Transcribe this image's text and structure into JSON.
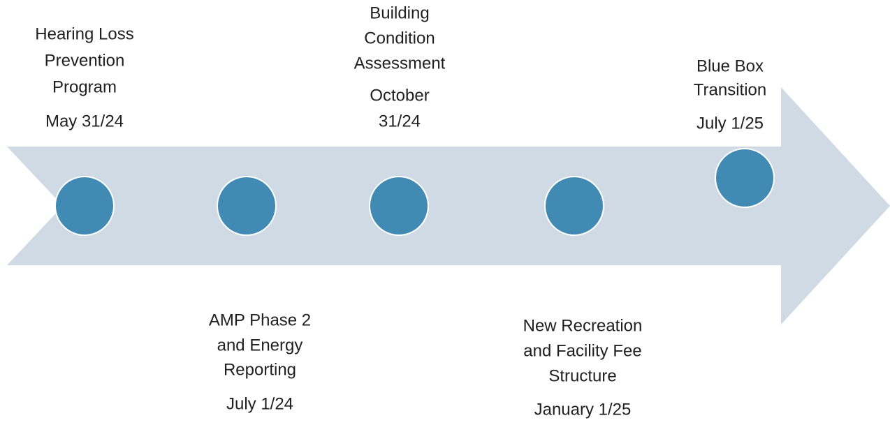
{
  "milestones": [
    {
      "title_lines": [
        "Hearing Loss",
        "Prevention",
        "Program"
      ],
      "date_lines": [
        "May 31/24"
      ]
    },
    {
      "title_lines": [
        "AMP Phase 2",
        "and Energy",
        "Reporting"
      ],
      "date_lines": [
        "July 1/24"
      ]
    },
    {
      "title_lines": [
        "Building",
        "Condition",
        "Assessment"
      ],
      "date_lines": [
        "October",
        "31/24"
      ]
    },
    {
      "title_lines": [
        "New Recreation",
        "and Facility Fee",
        "Structure"
      ],
      "date_lines": [
        "January 1/25"
      ]
    },
    {
      "title_lines": [
        "Blue Box",
        "Transition"
      ],
      "date_lines": [
        "July 1/25"
      ]
    }
  ]
}
